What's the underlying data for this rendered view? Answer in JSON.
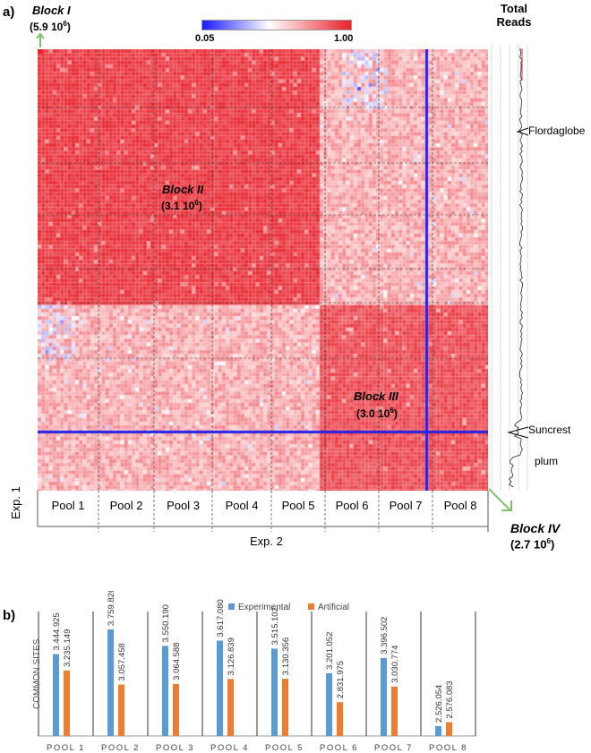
{
  "panel_a": {
    "label": "a)",
    "colorbar": {
      "min_label": "0.05",
      "max_label": "1.00",
      "low_color": "#1a1aff",
      "mid_color": "#ffffff",
      "high_color": "#e8202a"
    },
    "blocks": [
      {
        "name": "Block I",
        "reads": "(5.9 10",
        "exp": "6",
        "close": ")"
      },
      {
        "name": "Block II",
        "reads": "(3.1 10",
        "exp": "6",
        "close": ")"
      },
      {
        "name": "Block III",
        "reads": "(3.0 10",
        "exp": "6",
        "close": ")"
      },
      {
        "name": "Block IV",
        "reads": "(2.7 10",
        "exp": "6",
        "close": ")"
      }
    ],
    "total_reads_title_1": "Total",
    "total_reads_title_2": "Reads",
    "annotations": [
      "Flordaglobe",
      "Suncrest",
      "plum"
    ],
    "pools": [
      "Pool 1",
      "Pool 2",
      "Pool 3",
      "Pool 4",
      "Pool 5",
      "Pool 6",
      "Pool 7",
      "Pool 8"
    ],
    "y_axis_label": "Exp. 1",
    "x_axis_label": "Exp. 2"
  },
  "chart_data": {
    "type": "bar",
    "label": "b)",
    "categories": [
      "POOL 1",
      "POOL 2",
      "POOL 3",
      "POOL 4",
      "POOL 5",
      "POOL 6",
      "POOL 7",
      "POOL 8"
    ],
    "ylabel": "COMMON SITES",
    "series": [
      {
        "name": "Experimental",
        "color": "#5b9bd5",
        "values": [
          3444925,
          3759826,
          3550190,
          3617080,
          3515102,
          3201052,
          3396502,
          2526054
        ],
        "labels": [
          "3.444.925",
          "3.759.826",
          "3.550.190",
          "3.617.080",
          "3.515.102",
          "3.201.052",
          "3.396.502",
          "2.526.054"
        ]
      },
      {
        "name": "Artificial",
        "color": "#ed7d31",
        "values": [
          3235149,
          3057458,
          3064588,
          3126839,
          3130356,
          2831975,
          3030774,
          2576083
        ],
        "labels": [
          "3.235.149",
          "3.057.458",
          "3.064.588",
          "3.126.839",
          "3.130.356",
          "2.831.975",
          "3.030.774",
          "2.576.083"
        ]
      }
    ],
    "ylim": [
      2400000,
      3850000
    ]
  }
}
